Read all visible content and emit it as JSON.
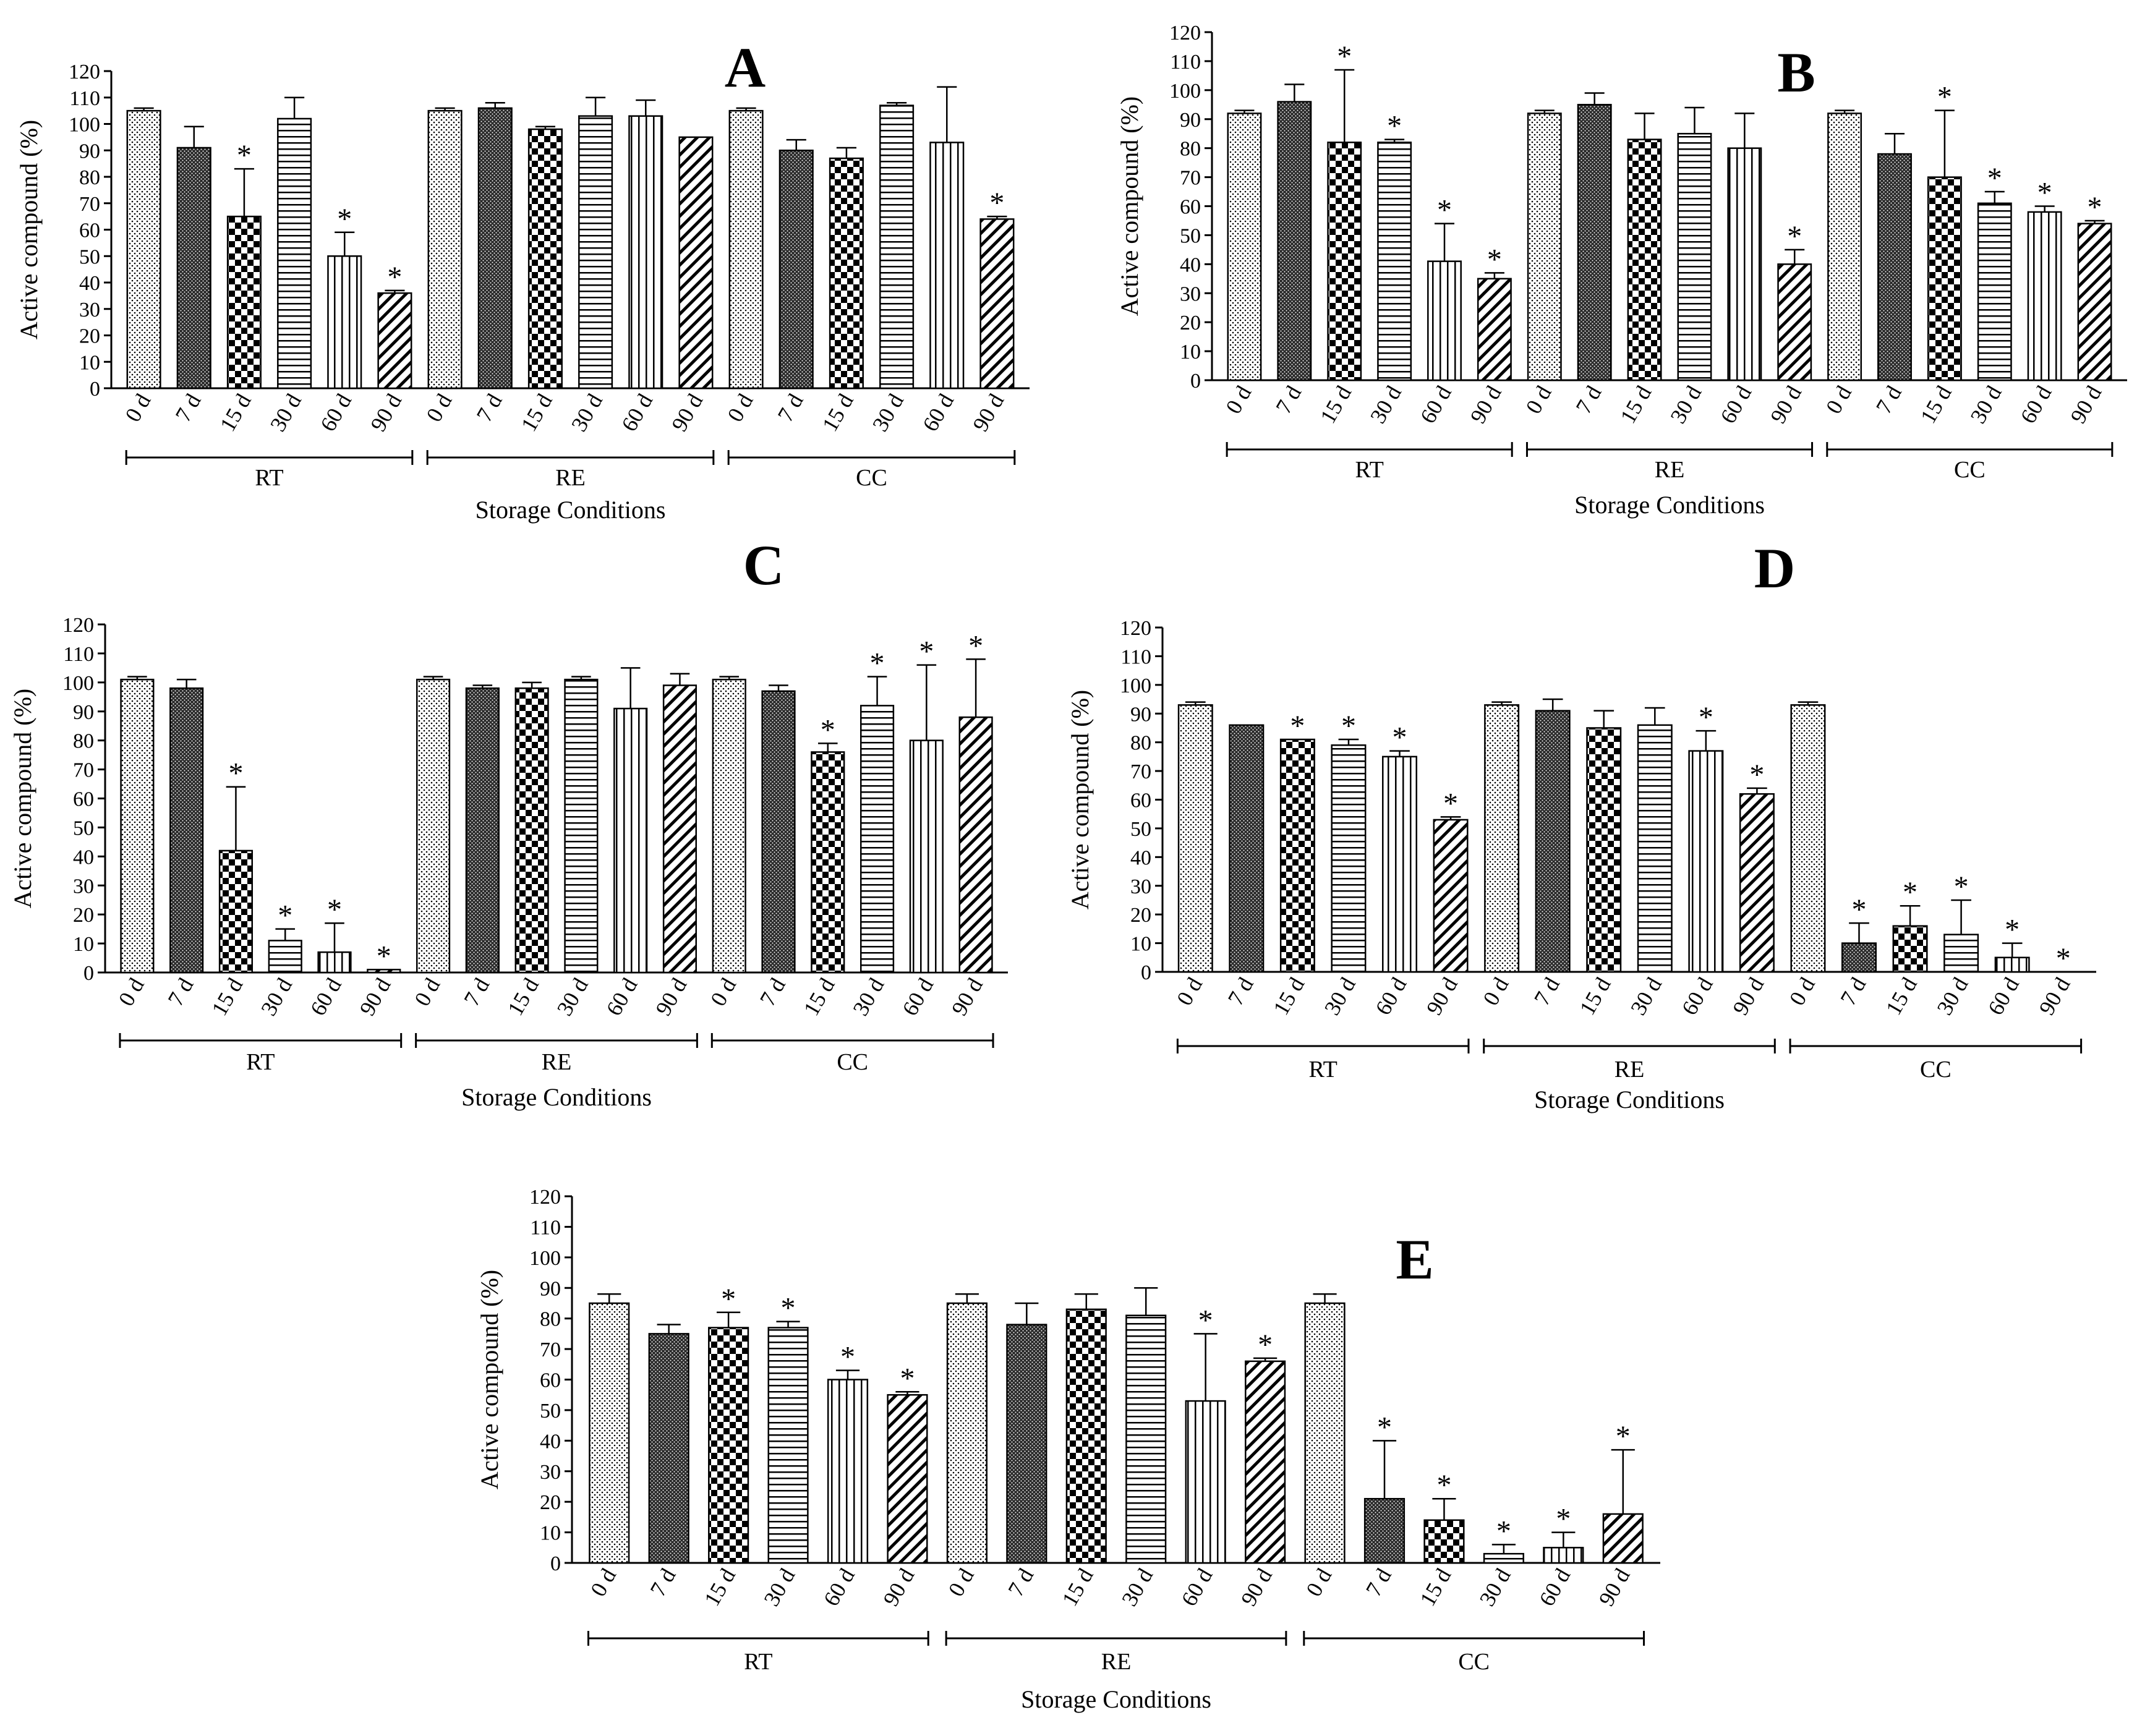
{
  "chart_data": [
    {
      "type": "bar",
      "panel_label": "A",
      "ylabel": "Active compound (%)",
      "xlabel": "Storage Conditions",
      "ylim": [
        0,
        120
      ],
      "yticks": [
        0,
        10,
        20,
        30,
        40,
        50,
        60,
        70,
        80,
        90,
        100,
        110,
        120
      ],
      "groups": [
        "RT",
        "RE",
        "CC"
      ],
      "categories": [
        "0 d",
        "7 d",
        "15 d",
        "30 d",
        "60 d",
        "90 d"
      ],
      "series": [
        {
          "name": "RT",
          "values": [
            105,
            91,
            65,
            102,
            50,
            36
          ],
          "errors": [
            1,
            8,
            18,
            8,
            9,
            1
          ],
          "significant": [
            false,
            false,
            true,
            false,
            true,
            true
          ]
        },
        {
          "name": "RE",
          "values": [
            105,
            106,
            98,
            103,
            103,
            95
          ],
          "errors": [
            1,
            2,
            1,
            7,
            6,
            0
          ],
          "significant": [
            false,
            false,
            false,
            false,
            false,
            false
          ]
        },
        {
          "name": "CC",
          "values": [
            105,
            90,
            87,
            107,
            93,
            64
          ],
          "errors": [
            1,
            4,
            4,
            1,
            21,
            1
          ],
          "significant": [
            false,
            false,
            false,
            false,
            false,
            true
          ]
        }
      ]
    },
    {
      "type": "bar",
      "panel_label": "B",
      "ylabel": "Active compound (%)",
      "xlabel": "Storage Conditions",
      "ylim": [
        0,
        120
      ],
      "yticks": [
        0,
        10,
        20,
        30,
        40,
        50,
        60,
        70,
        80,
        90,
        100,
        110,
        120
      ],
      "groups": [
        "RT",
        "RE",
        "CC"
      ],
      "categories": [
        "0 d",
        "7 d",
        "15 d",
        "30 d",
        "60 d",
        "90 d"
      ],
      "series": [
        {
          "name": "RT",
          "values": [
            92,
            96,
            82,
            82,
            41,
            35
          ],
          "errors": [
            1,
            6,
            25,
            1,
            13,
            2
          ],
          "significant": [
            false,
            false,
            true,
            true,
            true,
            true
          ]
        },
        {
          "name": "RE",
          "values": [
            92,
            95,
            83,
            85,
            80,
            40
          ],
          "errors": [
            1,
            4,
            9,
            9,
            12,
            5
          ],
          "significant": [
            false,
            false,
            false,
            false,
            false,
            true
          ]
        },
        {
          "name": "CC",
          "values": [
            92,
            78,
            70,
            61,
            58,
            54
          ],
          "errors": [
            1,
            7,
            23,
            4,
            2,
            1
          ],
          "significant": [
            false,
            false,
            true,
            true,
            true,
            true
          ]
        }
      ]
    },
    {
      "type": "bar",
      "panel_label": "C",
      "ylabel": "Active compound (%)",
      "xlabel": "Storage Conditions",
      "ylim": [
        0,
        120
      ],
      "yticks": [
        0,
        10,
        20,
        30,
        40,
        50,
        60,
        70,
        80,
        90,
        100,
        110,
        120
      ],
      "groups": [
        "RT",
        "RE",
        "CC"
      ],
      "categories": [
        "0 d",
        "7 d",
        "15 d",
        "30 d",
        "60 d",
        "90 d"
      ],
      "series": [
        {
          "name": "RT",
          "values": [
            101,
            98,
            42,
            11,
            7,
            1
          ],
          "errors": [
            1,
            3,
            22,
            4,
            10,
            0
          ],
          "significant": [
            false,
            false,
            true,
            true,
            true,
            true
          ]
        },
        {
          "name": "RE",
          "values": [
            101,
            98,
            98,
            101,
            91,
            99
          ],
          "errors": [
            1,
            1,
            2,
            1,
            14,
            4
          ],
          "significant": [
            false,
            false,
            false,
            false,
            false,
            false
          ]
        },
        {
          "name": "CC",
          "values": [
            101,
            97,
            76,
            92,
            80,
            88
          ],
          "errors": [
            1,
            2,
            3,
            10,
            26,
            20
          ],
          "significant": [
            false,
            false,
            true,
            true,
            true,
            true
          ]
        }
      ]
    },
    {
      "type": "bar",
      "panel_label": "D",
      "ylabel": "Active compound (%)",
      "xlabel": "Storage Conditions",
      "ylim": [
        0,
        120
      ],
      "yticks": [
        0,
        10,
        20,
        30,
        40,
        50,
        60,
        70,
        80,
        90,
        100,
        110,
        120
      ],
      "groups": [
        "RT",
        "RE",
        "CC"
      ],
      "categories": [
        "0 d",
        "7 d",
        "15 d",
        "30 d",
        "60 d",
        "90 d"
      ],
      "series": [
        {
          "name": "RT",
          "values": [
            93,
            86,
            81,
            79,
            75,
            53
          ],
          "errors": [
            1,
            0,
            0,
            2,
            2,
            1
          ],
          "significant": [
            false,
            false,
            true,
            true,
            true,
            true
          ]
        },
        {
          "name": "RE",
          "values": [
            93,
            91,
            85,
            86,
            77,
            62
          ],
          "errors": [
            1,
            4,
            6,
            6,
            7,
            2
          ],
          "significant": [
            false,
            false,
            false,
            false,
            true,
            true
          ]
        },
        {
          "name": "CC",
          "values": [
            93,
            10,
            16,
            13,
            5,
            0
          ],
          "errors": [
            1,
            7,
            7,
            12,
            5,
            0
          ],
          "significant": [
            false,
            true,
            true,
            true,
            true,
            true
          ]
        }
      ]
    },
    {
      "type": "bar",
      "panel_label": "E",
      "ylabel": "Active compound (%)",
      "xlabel": "Storage Conditions",
      "ylim": [
        0,
        120
      ],
      "yticks": [
        0,
        10,
        20,
        30,
        40,
        50,
        60,
        70,
        80,
        90,
        100,
        110,
        120
      ],
      "groups": [
        "RT",
        "RE",
        "CC"
      ],
      "categories": [
        "0 d",
        "7 d",
        "15 d",
        "30 d",
        "60 d",
        "90 d"
      ],
      "series": [
        {
          "name": "RT",
          "values": [
            85,
            75,
            77,
            77,
            60,
            55
          ],
          "errors": [
            3,
            3,
            5,
            2,
            3,
            1
          ],
          "significant": [
            false,
            false,
            true,
            true,
            true,
            true
          ]
        },
        {
          "name": "RE",
          "values": [
            85,
            78,
            83,
            81,
            53,
            66
          ],
          "errors": [
            3,
            7,
            5,
            9,
            22,
            1
          ],
          "significant": [
            false,
            false,
            false,
            false,
            true,
            true
          ]
        },
        {
          "name": "CC",
          "values": [
            85,
            21,
            14,
            3,
            5,
            16
          ],
          "errors": [
            3,
            19,
            7,
            3,
            5,
            21
          ],
          "significant": [
            false,
            true,
            true,
            true,
            true,
            true
          ]
        }
      ]
    }
  ],
  "significance_symbol": "*"
}
